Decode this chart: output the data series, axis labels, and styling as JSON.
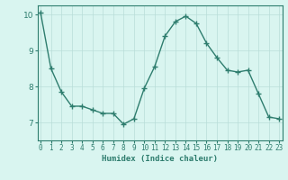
{
  "x": [
    0,
    1,
    2,
    3,
    4,
    5,
    6,
    7,
    8,
    9,
    10,
    11,
    12,
    13,
    14,
    15,
    16,
    17,
    18,
    19,
    20,
    21,
    22,
    23
  ],
  "y": [
    10.05,
    8.5,
    7.85,
    7.45,
    7.45,
    7.35,
    7.25,
    7.25,
    6.95,
    7.1,
    7.95,
    8.55,
    9.4,
    9.8,
    9.95,
    9.75,
    9.2,
    8.8,
    8.45,
    8.4,
    8.45,
    7.8,
    7.15,
    7.1
  ],
  "line_color": "#2e7d6e",
  "marker": "+",
  "markersize": 4,
  "linewidth": 1.0,
  "bg_color": "#d9f5f0",
  "grid_color": "#b8ddd8",
  "grid_color_major": "#c8a0a0",
  "xlabel": "Humidex (Indice chaleur)",
  "xlabel_color": "#2e7d6e",
  "tick_color": "#2e7d6e",
  "spine_color": "#2e7d6e",
  "ylim": [
    6.5,
    10.25
  ],
  "yticks": [
    7,
    8,
    9,
    10
  ],
  "xticks": [
    0,
    1,
    2,
    3,
    4,
    5,
    6,
    7,
    8,
    9,
    10,
    11,
    12,
    13,
    14,
    15,
    16,
    17,
    18,
    19,
    20,
    21,
    22,
    23
  ],
  "xtick_labels": [
    "0",
    "1",
    "2",
    "3",
    "4",
    "5",
    "6",
    "7",
    "8",
    "9",
    "10",
    "11",
    "12",
    "13",
    "14",
    "15",
    "16",
    "17",
    "18",
    "19",
    "20",
    "21",
    "22",
    "23"
  ],
  "xtick_fontsize": 5.5,
  "ytick_fontsize": 6.5,
  "xlabel_fontsize": 6.5
}
